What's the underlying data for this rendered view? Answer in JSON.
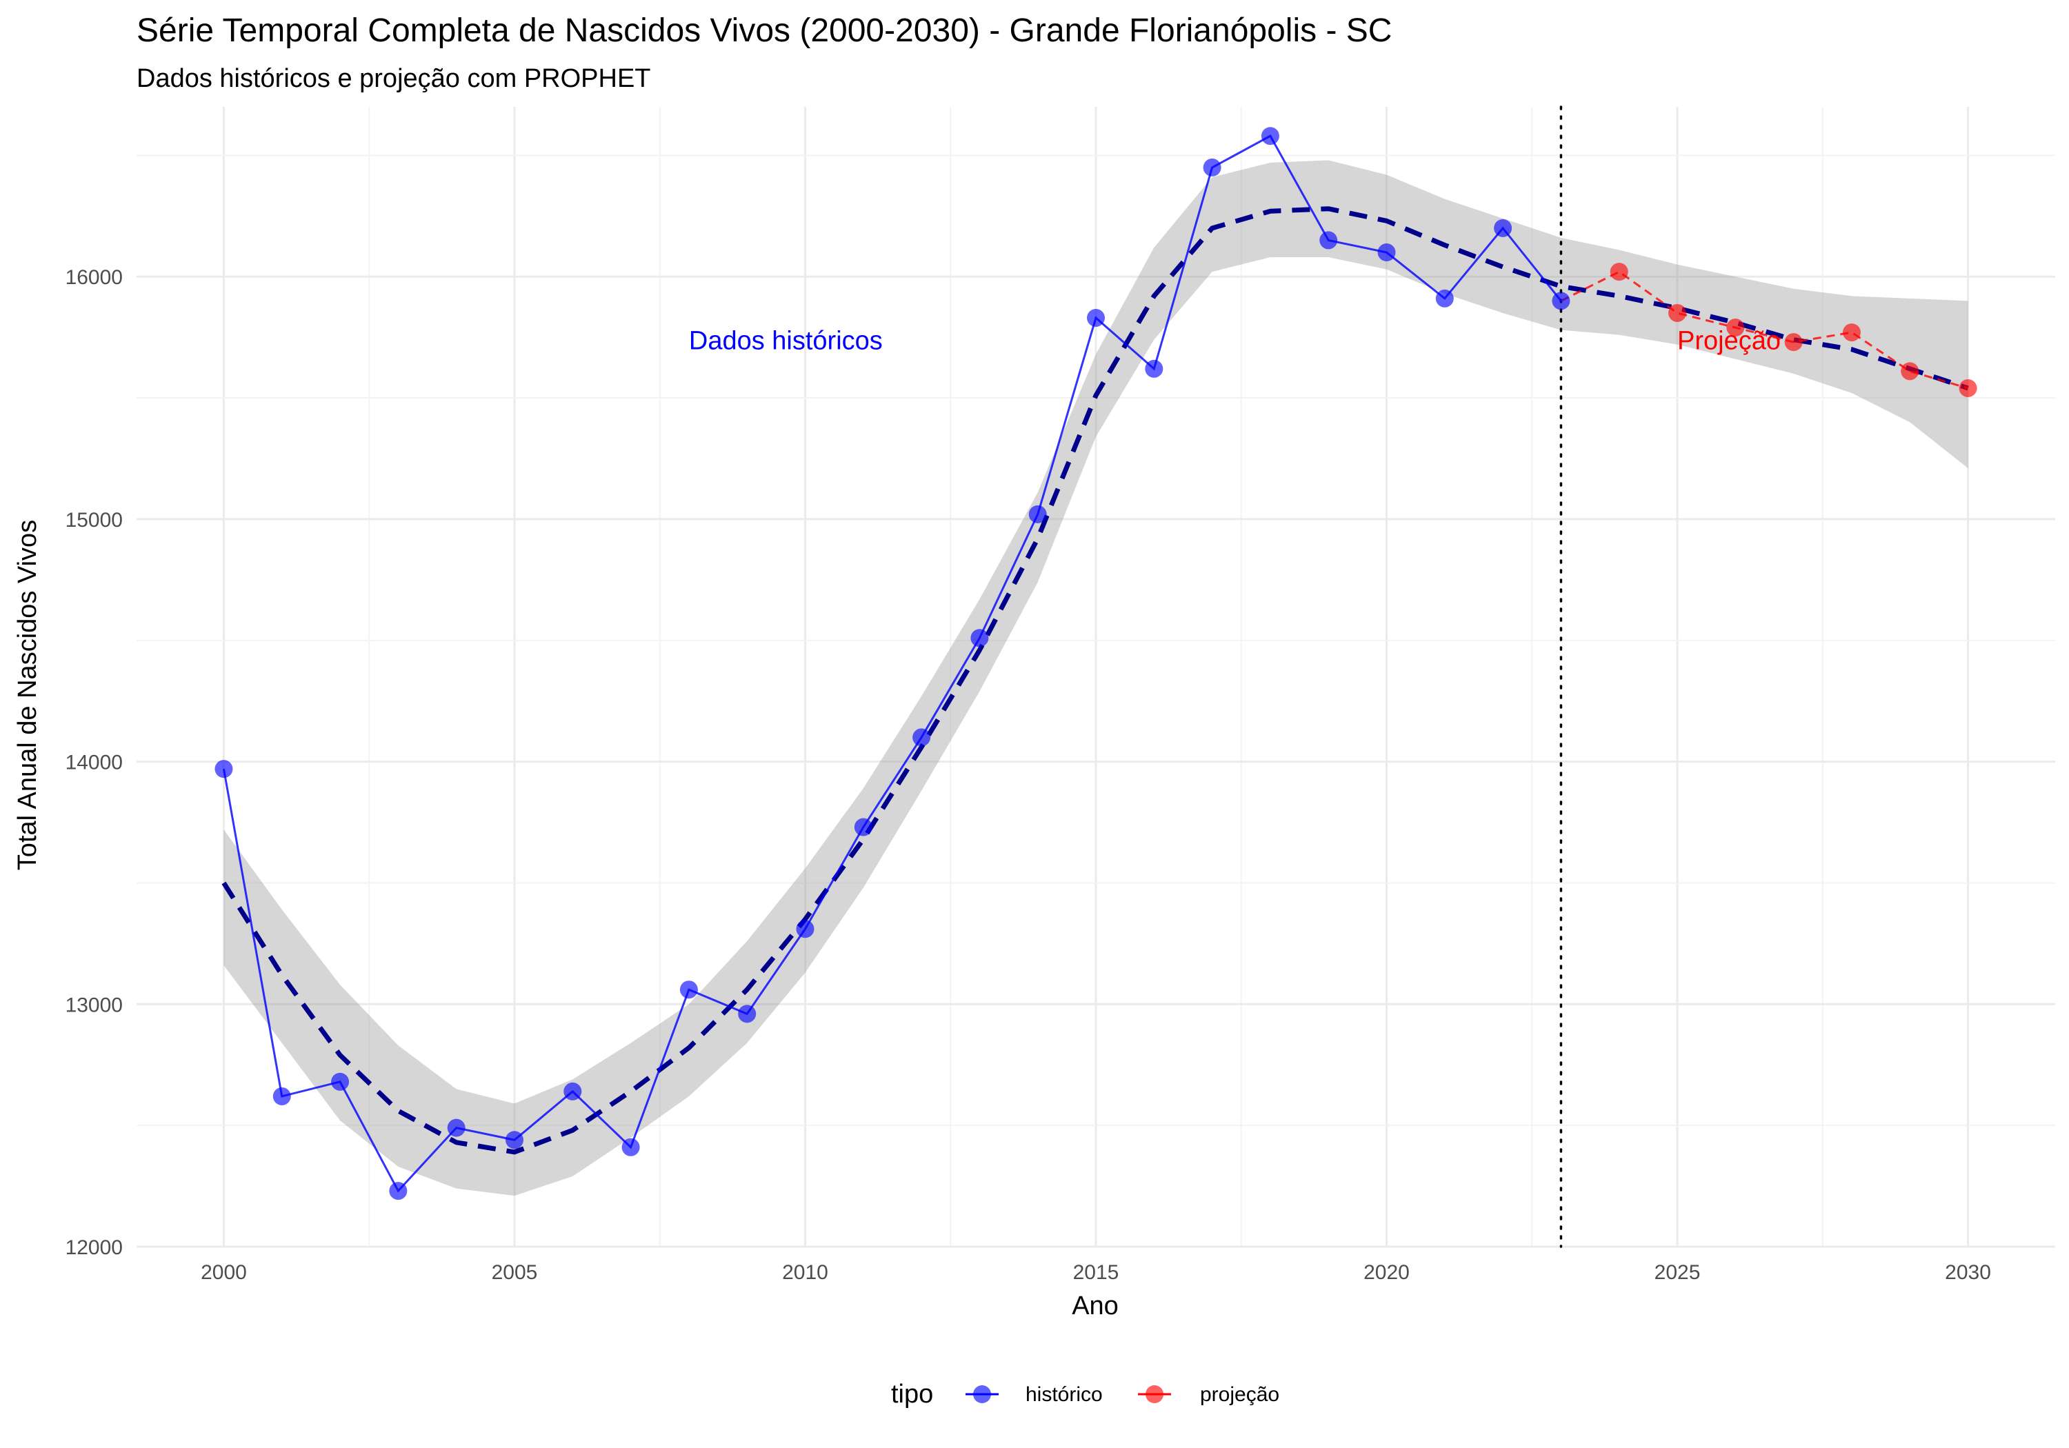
{
  "chart_data": {
    "type": "line",
    "title": "Série Temporal Completa de Nascidos Vivos (2000-2030) -  Grande Florianópolis - SC",
    "subtitle": "Dados históricos e projeção com PROPHET",
    "xlabel": "Ano",
    "ylabel": "Total Anual de Nascidos Vivos",
    "xlim": [
      1998.5,
      2031.5
    ],
    "ylim": [
      12000,
      16700
    ],
    "x_ticks": [
      2000,
      2005,
      2010,
      2015,
      2020,
      2025,
      2030
    ],
    "y_ticks": [
      12000,
      13000,
      14000,
      15000,
      16000
    ],
    "grid": true,
    "legend": {
      "title": "tipo",
      "position": "bottom"
    },
    "vline": {
      "x": 2023,
      "style": "dotted"
    },
    "annotations": [
      {
        "text": "Dados históricos",
        "x": 2008,
        "y": 15740,
        "color": "#0000ff"
      },
      {
        "text": "Projeção",
        "x": 2025,
        "y": 15740,
        "color": "#ff0000"
      }
    ],
    "series": [
      {
        "name": "histórico",
        "color": "#0000ff",
        "x": [
          2000,
          2001,
          2002,
          2003,
          2004,
          2005,
          2006,
          2007,
          2008,
          2009,
          2010,
          2011,
          2012,
          2013,
          2014,
          2015,
          2016,
          2017,
          2018,
          2019,
          2020,
          2021,
          2022,
          2023
        ],
        "values": [
          13970,
          12620,
          12680,
          12230,
          12490,
          12440,
          12640,
          12410,
          13060,
          12960,
          13310,
          13730,
          14100,
          14510,
          15020,
          15830,
          15620,
          16450,
          16580,
          16150,
          16100,
          15910,
          16200,
          15900
        ]
      },
      {
        "name": "projeção",
        "color": "#ff0000",
        "x": [
          2023,
          2024,
          2025,
          2026,
          2027,
          2028,
          2029,
          2030
        ],
        "values": [
          15900,
          16020,
          15850,
          15790,
          15730,
          15770,
          15610,
          15540
        ]
      }
    ],
    "trend": {
      "color": "#00008b",
      "style": "dashed",
      "x": [
        2000,
        2001,
        2002,
        2003,
        2004,
        2005,
        2006,
        2007,
        2008,
        2009,
        2010,
        2011,
        2012,
        2013,
        2014,
        2015,
        2016,
        2017,
        2018,
        2019,
        2020,
        2021,
        2022,
        2023,
        2024,
        2025,
        2026,
        2027,
        2028,
        2029,
        2030
      ],
      "values": [
        13500,
        13120,
        12790,
        12560,
        12430,
        12390,
        12480,
        12640,
        12820,
        13060,
        13350,
        13680,
        14060,
        14460,
        14920,
        15510,
        15920,
        16200,
        16270,
        16280,
        16230,
        16130,
        16040,
        15960,
        15920,
        15870,
        15810,
        15740,
        15700,
        15620,
        15540
      ]
    },
    "confidence_band": {
      "x": [
        2000,
        2001,
        2002,
        2003,
        2004,
        2005,
        2006,
        2007,
        2008,
        2009,
        2010,
        2011,
        2012,
        2013,
        2014,
        2015,
        2016,
        2017,
        2018,
        2019,
        2020,
        2021,
        2022,
        2023,
        2024,
        2025,
        2026,
        2027,
        2028,
        2029,
        2030
      ],
      "lower": [
        13160,
        12840,
        12520,
        12330,
        12240,
        12210,
        12290,
        12450,
        12620,
        12840,
        13130,
        13480,
        13880,
        14290,
        14740,
        15340,
        15740,
        16020,
        16080,
        16080,
        16030,
        15930,
        15850,
        15780,
        15760,
        15720,
        15660,
        15600,
        15520,
        15400,
        15210
      ],
      "upper": [
        13720,
        13390,
        13080,
        12830,
        12650,
        12590,
        12690,
        12840,
        13000,
        13260,
        13560,
        13890,
        14270,
        14670,
        15110,
        15680,
        16120,
        16410,
        16470,
        16480,
        16420,
        16320,
        16240,
        16160,
        16110,
        16050,
        16000,
        15950,
        15920,
        15910,
        15900
      ]
    }
  }
}
